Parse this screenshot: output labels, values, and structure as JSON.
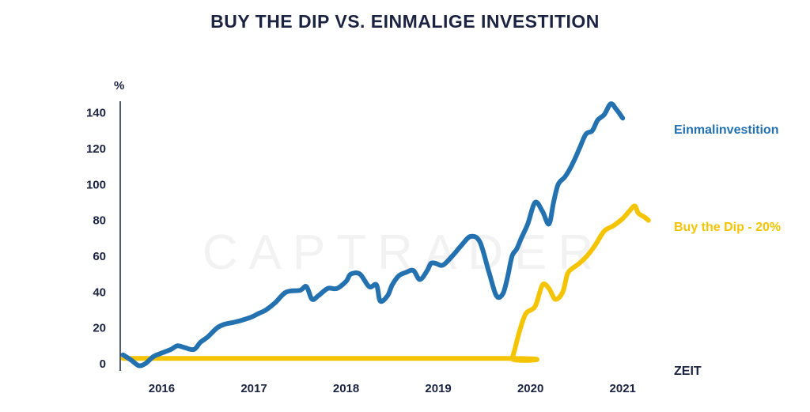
{
  "watermark": "CAPTRADER",
  "colors": {
    "einmal": "#2471b0",
    "dip": "#f5c400",
    "text": "#1b2340"
  },
  "chart_data": {
    "type": "line",
    "title": "BUY THE DIP VS. EINMALIGE INVESTITION",
    "ylabel": "%",
    "xlabel": "ZEIT",
    "ylim": [
      0,
      150
    ],
    "yticks": [
      0,
      20,
      40,
      60,
      80,
      100,
      120,
      140
    ],
    "xlim": [
      2015.6,
      2021.4
    ],
    "xticks": [
      2016,
      2017,
      2018,
      2019,
      2020,
      2021
    ],
    "grid": false,
    "legend": "end-of-line labels",
    "series": [
      {
        "name": "Einmalinvestition",
        "color": "#2471b0",
        "x": [
          2015.63,
          2015.72,
          2015.8,
          2015.87,
          2015.96,
          2016.05,
          2016.15,
          2016.22,
          2016.3,
          2016.4,
          2016.47,
          2016.55,
          2016.65,
          2016.73,
          2016.82,
          2016.9,
          2017.02,
          2017.1,
          2017.18,
          2017.28,
          2017.4,
          2017.55,
          2017.62,
          2017.68,
          2017.75,
          2017.85,
          2017.95,
          2018.05,
          2018.1,
          2018.2,
          2018.3,
          2018.38,
          2018.42,
          2018.5,
          2018.55,
          2018.62,
          2018.7,
          2018.78,
          2018.85,
          2018.93,
          2018.97,
          2019.02,
          2019.1,
          2019.2,
          2019.3,
          2019.4,
          2019.5,
          2019.6,
          2019.68,
          2019.75,
          2019.8,
          2019.85,
          2019.9,
          2019.95,
          2020.02,
          2020.1,
          2020.18,
          2020.25,
          2020.3,
          2020.35,
          2020.42,
          2020.47,
          2020.52,
          2020.58,
          2020.65,
          2020.72,
          2020.78,
          2020.85,
          2020.92,
          2020.98,
          2021.05,
          2021.12,
          2021.18,
          2021.23,
          2021.28,
          2021.33
        ],
        "values": [
          5,
          2,
          -1,
          0,
          4,
          6,
          8,
          10,
          9,
          8,
          12,
          15,
          20,
          22,
          23,
          24,
          26,
          28,
          30,
          34,
          40,
          41,
          43,
          36,
          38,
          42,
          42,
          46,
          50,
          50,
          43,
          44,
          35,
          38,
          44,
          49,
          51,
          52,
          47,
          52,
          56,
          56,
          55,
          60,
          66,
          71,
          68,
          51,
          38,
          39,
          48,
          60,
          64,
          70,
          78,
          90,
          85,
          78,
          90,
          100,
          104,
          108,
          113,
          120,
          128,
          130,
          136,
          139,
          145,
          142,
          137,
          0,
          0,
          0,
          0,
          0
        ],
        "_trim": 71
      },
      {
        "name": "Buy the Dip - 20%",
        "color": "#f5c400",
        "x": [
          2015.63,
          2019.8,
          2019.85,
          2019.93,
          2020.0,
          2020.1,
          2020.18,
          2020.25,
          2020.32,
          2020.4,
          2020.45,
          2020.5,
          2020.58,
          2020.66,
          2020.75,
          2020.85,
          2020.95,
          2021.05,
          2021.12,
          2021.18,
          2021.22,
          2021.28,
          2021.33
        ],
        "values": [
          3,
          3,
          3,
          18,
          28,
          32,
          44,
          42,
          36,
          40,
          50,
          53,
          56,
          60,
          66,
          74,
          77,
          81,
          85,
          88,
          84,
          82,
          80
        ]
      }
    ],
    "end_labels": [
      "Einmalinvestition",
      "Buy the Dip - 20%"
    ]
  }
}
